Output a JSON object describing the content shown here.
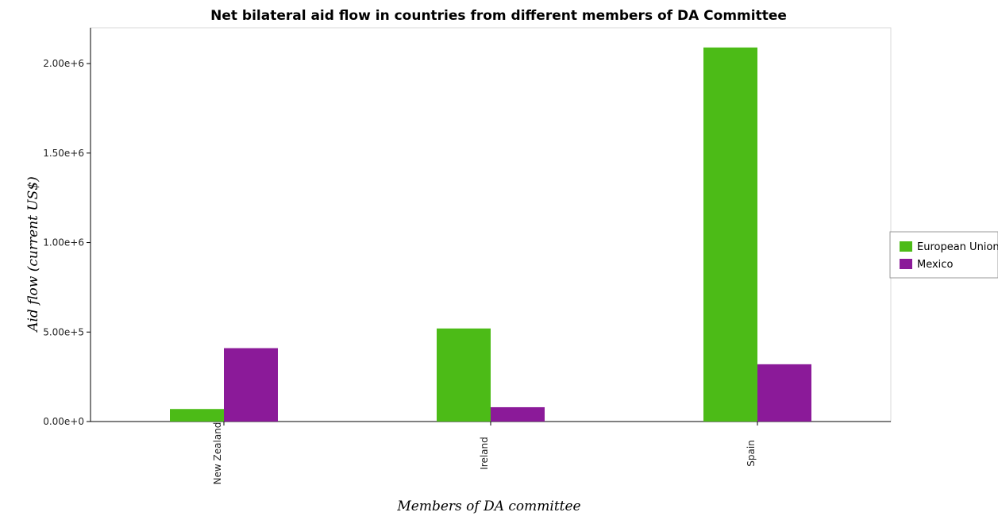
{
  "chart_data": {
    "type": "bar",
    "title": "Net bilateral aid flow in countries from different members of DA Committee",
    "xlabel": "Members of DA committee",
    "ylabel": "Aid flow (current US$)",
    "categories": [
      "New Zealand",
      "Ireland",
      "Spain"
    ],
    "series": [
      {
        "name": "European Union",
        "color": "#4cbb17",
        "values": [
          70000,
          520000,
          2090000
        ]
      },
      {
        "name": "Mexico",
        "color": "#8b1a99",
        "values": [
          410000,
          80000,
          320000
        ]
      }
    ],
    "ylim": [
      0,
      2200000
    ],
    "yticks": [
      0,
      500000,
      1000000,
      1500000,
      2000000
    ],
    "ytick_labels": [
      "0.00e+0",
      "5.00e+5",
      "1.00e+6",
      "1.50e+6",
      "2.00e+6"
    ],
    "grid": false,
    "legend_position": "right"
  }
}
